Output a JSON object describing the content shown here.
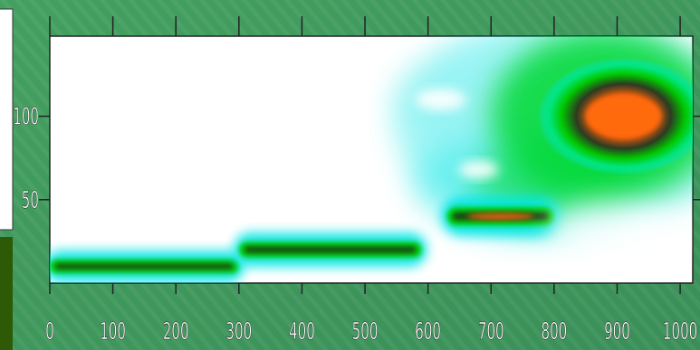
{
  "chart_data": {
    "type": "heatmap",
    "title": "",
    "xlabel": "",
    "ylabel": "",
    "xlim": [
      0,
      1020
    ],
    "ylim": [
      0,
      148
    ],
    "x_ticks": [
      "0",
      "100",
      "200",
      "300",
      "400",
      "500",
      "600",
      "700",
      "800",
      "900",
      "1000"
    ],
    "y_ticks": [
      "50",
      "100"
    ],
    "x_tick_values": [
      0,
      100,
      200,
      300,
      400,
      500,
      600,
      700,
      800,
      900,
      1000
    ],
    "y_tick_values": [
      50,
      100
    ],
    "colormap": [
      "#ffffff",
      "#00e5e5",
      "#00d800",
      "#1f3a1f",
      "#ff5a00"
    ],
    "hotspots": [
      {
        "shape": "band",
        "x": [
          0,
          300
        ],
        "y": 10,
        "intensity": 0.55
      },
      {
        "shape": "band",
        "x": [
          300,
          590
        ],
        "y": 20,
        "intensity": 0.7
      },
      {
        "shape": "band",
        "x": [
          630,
          800
        ],
        "y": 40,
        "intensity": 0.95
      },
      {
        "shape": "blob",
        "x": 910,
        "y": 100,
        "intensity": 1.0
      }
    ],
    "grid": false
  },
  "colors": {
    "background": "#3f9a5c",
    "left_block": "#2f5a05",
    "tick_text": "#ffffff"
  }
}
